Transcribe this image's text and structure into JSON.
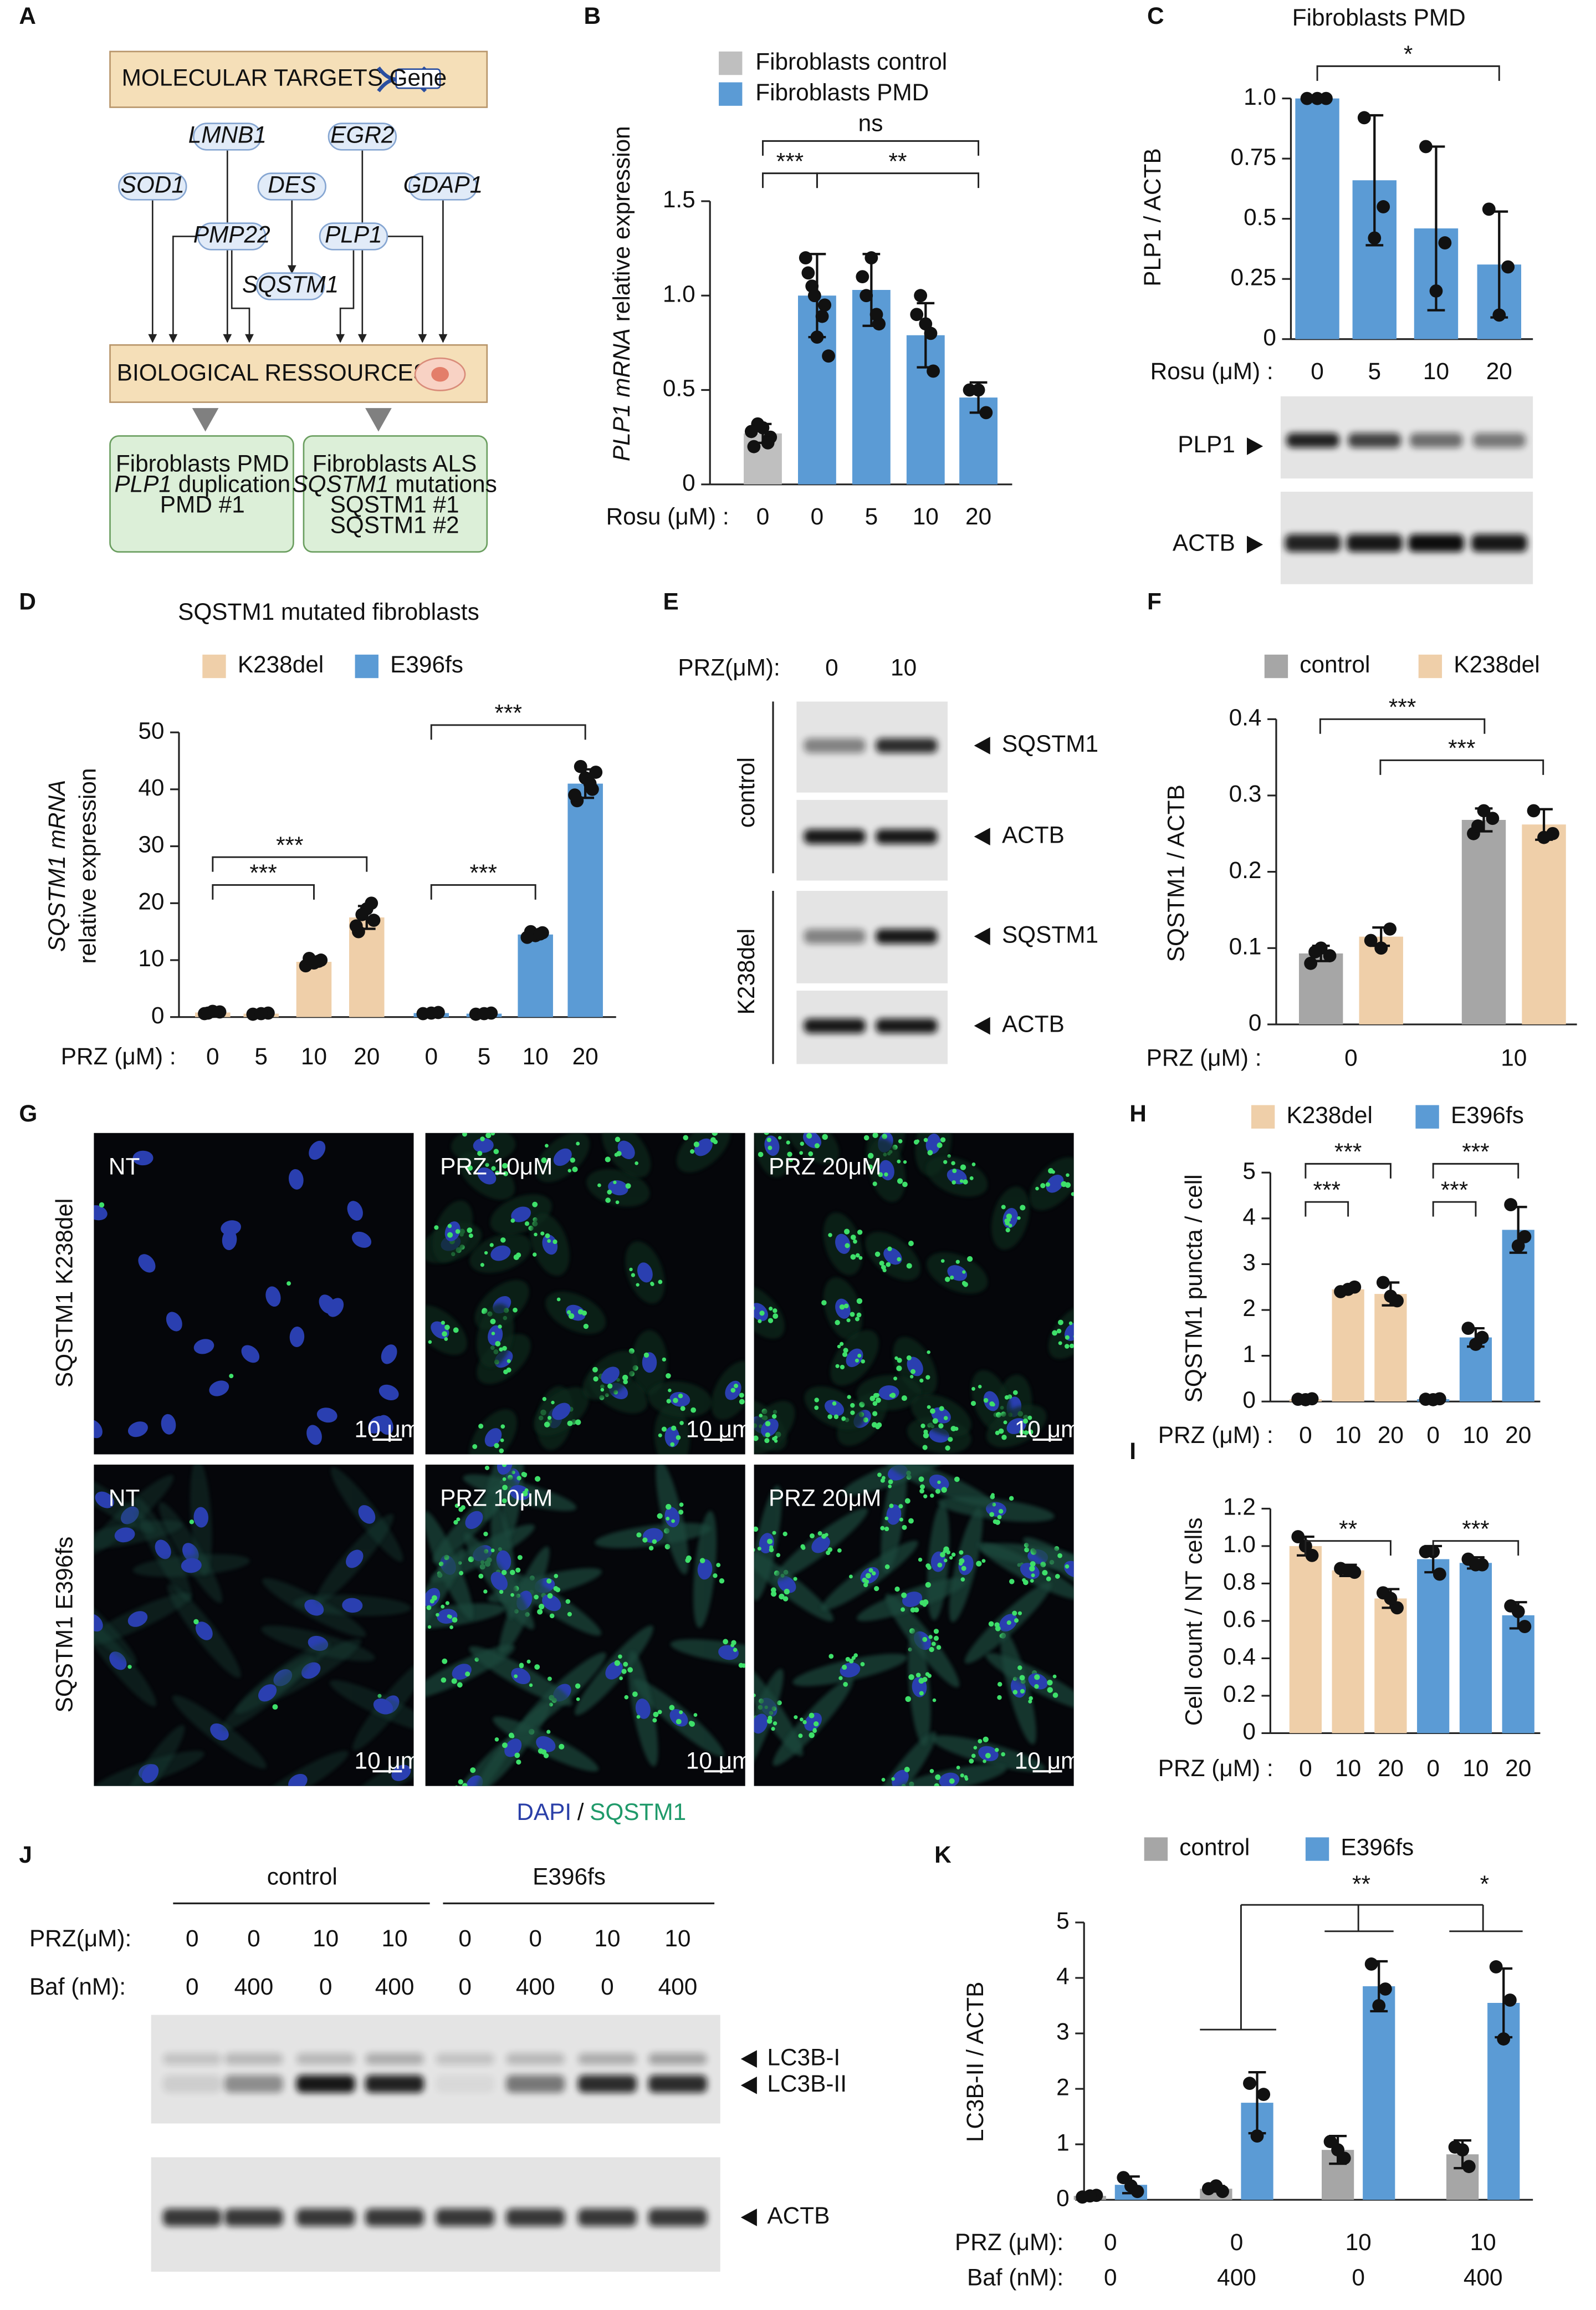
{
  "panels": [
    "A",
    "B",
    "C",
    "D",
    "E",
    "F",
    "G",
    "H",
    "I",
    "J",
    "K"
  ],
  "diagram": {
    "top": "MOLECULAR TARGETS",
    "icon": "Gene",
    "genes": [
      "LMNB1",
      "EGR2",
      "SOD1",
      "DES",
      "GDAP1",
      "PMP22",
      "PLP1",
      "SQSTM1"
    ],
    "middle": "BIOLOGICAL RESSOURCES",
    "outputs": [
      {
        "lines": [
          "Fibroblasts PMD",
          "duplication",
          "PMD #1"
        ],
        "italic": "PLP1"
      },
      {
        "lines": [
          "Fibroblasts ALS",
          "mutations",
          "SQSTM1 #1",
          "SQSTM1 #2"
        ],
        "italic": "SQSTM1"
      }
    ]
  },
  "chart_data": [
    {
      "type": "bar",
      "ylabel": {
        "italic": "PLP1 mRNA",
        "text": " relative expression"
      },
      "xlabel": "Rosu (μM) :",
      "categories": [
        "0",
        "0",
        "5",
        "10",
        "20"
      ],
      "series": [
        {
          "name": "Fibroblasts control",
          "color": "#bfbfbf",
          "values": [
            0.27,
            null,
            null,
            null,
            null
          ],
          "errors": [
            0.05,
            null,
            null,
            null,
            null
          ],
          "points": [
            [
              0.2,
              0.25,
              0.3,
              0.32,
              0.22,
              0.28
            ],
            null,
            null,
            null,
            null
          ]
        },
        {
          "name": "Fibroblasts PMD",
          "color": "#5b9bd5",
          "values": [
            null,
            1.0,
            1.03,
            0.79,
            0.46
          ],
          "errors": [
            null,
            0.22,
            0.19,
            0.17,
            0.08
          ],
          "points": [
            null,
            [
              1.12,
              0.95,
              0.78,
              1.05,
              0.89,
              1.2,
              0.68,
              1.0
            ],
            [
              1.1,
              0.85,
              1.2,
              1.0,
              0.9
            ],
            [
              0.9,
              0.6,
              0.85,
              1.0,
              0.8
            ],
            [
              0.5,
              0.38,
              0.5
            ]
          ]
        }
      ],
      "ylim": [
        0,
        1.5
      ],
      "yticks": [
        0,
        0.5,
        {
          "value": 1,
          "label": "1.0"
        },
        1.5
      ],
      "significance": [
        "ns",
        "***",
        "**"
      ]
    },
    {
      "type": "bar",
      "title": "Fibroblasts PMD",
      "ylabel": {
        "text": "PLP1 / ACTB"
      },
      "xlabel": "Rosu (μM) :",
      "categories": [
        "0",
        "5",
        "10",
        "20"
      ],
      "color": "#5b9bd5",
      "values": [
        1.0,
        0.66,
        0.46,
        0.31
      ],
      "errors": [
        null,
        0.27,
        0.34,
        0.22
      ],
      "points": [
        [
          1,
          1,
          1
        ],
        [
          0.92,
          0.55,
          0.42
        ],
        [
          0.8,
          0.4,
          0.2
        ],
        [
          0.54,
          0.3,
          0.1
        ]
      ],
      "ylim": [
        0,
        1
      ],
      "yticks": [
        0,
        0.25,
        0.5,
        0.75,
        {
          "value": 1,
          "label": "1.0"
        }
      ],
      "significance": [
        "*"
      ]
    },
    {
      "type": "bar",
      "title": "SQSTM1 mutated fibroblasts",
      "ylabel": {
        "italic": "SQSTM1 mRNA",
        "text": "relative expression"
      },
      "xlabel": "PRZ (μM) :",
      "categories": [
        "0",
        "5",
        "10",
        "20",
        "0",
        "5",
        "10",
        "20"
      ],
      "series": [
        {
          "name": "K238del",
          "color": "#efcfa9",
          "values": [
            0.8,
            0.6,
            9.7,
            17.5,
            null,
            null,
            null,
            null
          ],
          "errors": [
            0.2,
            0.2,
            0.6,
            2.0,
            null,
            null,
            null,
            null
          ],
          "points": [
            [
              0.6,
              0.9,
              1.0,
              0.7
            ],
            [
              0.5,
              0.7,
              0.6
            ],
            [
              9,
              10,
              9.5,
              10.3,
              9.8
            ],
            [
              15,
              17,
              19,
              18,
              20,
              16
            ],
            null,
            null,
            null,
            null
          ]
        },
        {
          "name": "E396fs",
          "color": "#5b9bd5",
          "values": [
            null,
            null,
            null,
            null,
            0.7,
            0.6,
            14.5,
            41
          ],
          "errors": [
            null,
            null,
            null,
            null,
            0.2,
            0.2,
            0.4,
            2.5
          ],
          "points": [
            null,
            null,
            null,
            null,
            [
              0.6,
              0.8,
              0.7
            ],
            [
              0.5,
              0.7,
              0.6
            ],
            [
              14,
              14.8,
              14.3,
              15,
              14.6
            ],
            [
              38,
              40,
              42,
              44,
              41,
              39,
              43
            ]
          ]
        }
      ],
      "ylim": [
        0,
        50
      ],
      "yticks": [
        0,
        10,
        20,
        30,
        40,
        50
      ],
      "significance": [
        "***",
        "***",
        "***",
        "***"
      ]
    },
    {
      "type": "bar",
      "ylabel": {
        "text": "SQSTM1 / ACTB"
      },
      "xlabel": "PRZ (μM) :",
      "categories": [
        "0",
        "10"
      ],
      "series": [
        {
          "name": "control",
          "color": "#a6a6a6",
          "values": [
            0.093,
            0.268
          ],
          "errors": [
            0.01,
            0.015
          ],
          "points": [
            [
              0.08,
              0.09,
              0.1,
              0.095
            ],
            [
              0.25,
              0.27,
              0.28,
              0.26
            ]
          ]
        },
        {
          "name": "K238del",
          "color": "#efcfa9",
          "values": [
            0.115,
            0.262
          ],
          "errors": [
            0.012,
            0.02
          ],
          "points": [
            [
              0.11,
              0.125,
              0.1
            ],
            [
              0.28,
              0.25,
              0.245
            ]
          ]
        }
      ],
      "ylim": [
        0,
        0.4
      ],
      "yticks": [
        0,
        0.1,
        0.2,
        0.3,
        0.4
      ],
      "significance": [
        "***",
        "***"
      ]
    },
    {
      "type": "bar",
      "ylabel": {
        "text": "SQSTM1 puncta / cell"
      },
      "xlabel": "PRZ (μM) :",
      "categories": [
        "0",
        "10",
        "20",
        "0",
        "10",
        "20"
      ],
      "series": [
        {
          "name": "K238del",
          "color": "#efcfa9",
          "values": [
            0.05,
            2.45,
            2.35,
            null,
            null,
            null
          ],
          "errors": [
            0.02,
            0.05,
            0.25,
            null,
            null,
            null
          ],
          "points": [
            [
              0.05,
              0.06,
              0.04
            ],
            [
              2.4,
              2.5,
              2.45
            ],
            [
              2.6,
              2.2,
              2.3
            ],
            null,
            null,
            null
          ]
        },
        {
          "name": "E396fs",
          "color": "#5b9bd5",
          "values": [
            null,
            null,
            null,
            0.05,
            1.4,
            3.75
          ],
          "errors": [
            null,
            null,
            null,
            0.02,
            0.2,
            0.5
          ],
          "points": [
            null,
            null,
            null,
            [
              0.05,
              0.06,
              0.04
            ],
            [
              1.6,
              1.4,
              1.25
            ],
            [
              4.3,
              3.6,
              3.4
            ]
          ]
        }
      ],
      "ylim": [
        0,
        5
      ],
      "yticks": [
        0,
        1,
        2,
        3,
        4,
        5
      ],
      "significance": [
        "***",
        "***",
        "***",
        "***"
      ]
    },
    {
      "type": "bar",
      "ylabel": {
        "text": "Cell count / NT cells"
      },
      "xlabel": "PRZ (μM) :",
      "categories": [
        "0",
        "10",
        "20",
        "0",
        "10",
        "20"
      ],
      "series": [
        {
          "color": "#efcfa9",
          "values": [
            1.0,
            0.87,
            0.72,
            null,
            null,
            null
          ],
          "errors": [
            0.05,
            0.03,
            0.05,
            null,
            null,
            null
          ],
          "points": [
            [
              1.05,
              0.95,
              1.0
            ],
            [
              0.88,
              0.86,
              0.87
            ],
            [
              0.75,
              0.67,
              0.72
            ],
            null,
            null,
            null
          ]
        },
        {
          "color": "#5b9bd5",
          "values": [
            null,
            null,
            null,
            0.93,
            0.91,
            0.63
          ],
          "errors": [
            null,
            null,
            null,
            0.07,
            0.03,
            0.07
          ],
          "points": [
            null,
            null,
            null,
            [
              0.97,
              0.85,
              0.97
            ],
            [
              0.93,
              0.9,
              0.9
            ],
            [
              0.68,
              0.57,
              0.65
            ]
          ]
        }
      ],
      "ylim": [
        0,
        1.2
      ],
      "yticks": [
        0,
        0.2,
        0.4,
        0.6,
        0.8,
        {
          "value": 1,
          "label": "1.0"
        },
        1.2
      ],
      "significance": [
        "**",
        "***"
      ]
    },
    {
      "type": "bar",
      "ylabel": {
        "text": "LC3B-II / ACTB"
      },
      "xlabel": "PRZ (μM):",
      "categories": [
        "0",
        "0",
        "10",
        "10"
      ],
      "xlabel_2": "Baf (nM):",
      "categories_2": [
        "0",
        "400",
        "0",
        "400"
      ],
      "series": [
        {
          "name": "control",
          "color": "#a6a6a6",
          "values": [
            0.07,
            0.2,
            0.9,
            0.82
          ],
          "errors": [
            0.02,
            0.05,
            0.25,
            0.25
          ],
          "points": [
            [
              0.05,
              0.08,
              0.07
            ],
            [
              0.2,
              0.15,
              0.25
            ],
            [
              1.05,
              0.75,
              0.9
            ],
            [
              0.95,
              0.6,
              0.9
            ]
          ]
        },
        {
          "name": "E396fs",
          "color": "#5b9bd5",
          "values": [
            0.27,
            1.75,
            3.85,
            3.55
          ],
          "errors": [
            0.15,
            0.55,
            0.45,
            0.62
          ],
          "points": [
            [
              0.4,
              0.15,
              0.25
            ],
            [
              2.1,
              1.9,
              1.15
            ],
            [
              4.25,
              3.8,
              3.5
            ],
            [
              4.2,
              3.6,
              2.9
            ]
          ]
        }
      ],
      "ylim": [
        0,
        5
      ],
      "yticks": [
        0,
        1,
        2,
        3,
        4,
        5
      ],
      "significance": [
        "**",
        "*"
      ]
    }
  ],
  "blots": {
    "C": {
      "labels": [
        "PLP1",
        "ACTB"
      ]
    },
    "E": {
      "xlabel": "PRZ(μM):",
      "lanes": [
        "0",
        "10"
      ],
      "groups": [
        "control",
        "K238del"
      ],
      "labels": [
        "SQSTM1",
        "ACTB",
        "SQSTM1",
        "ACTB"
      ]
    },
    "J": {
      "groups": [
        "control",
        "E396fs"
      ],
      "rows": [
        {
          "label": "PRZ(μM):",
          "lanes": [
            "0",
            "0",
            "10",
            "10",
            "0",
            "0",
            "10",
            "10"
          ]
        },
        {
          "label": "Baf (nM):",
          "lanes": [
            "0",
            "400",
            "0",
            "400",
            "0",
            "400",
            "0",
            "400"
          ]
        }
      ],
      "labels": [
        "LC3B-I",
        "LC3B-II",
        "ACTB"
      ]
    }
  },
  "micrographs": {
    "columns": [
      "NT",
      "PRZ 10μM",
      "PRZ 20μM"
    ],
    "rows": [
      "SQSTM1 K238del",
      "SQSTM1 E396fs"
    ],
    "scale_bar": "10 μm",
    "stain": [
      "DAPI",
      "/",
      "SQSTM1"
    ]
  }
}
